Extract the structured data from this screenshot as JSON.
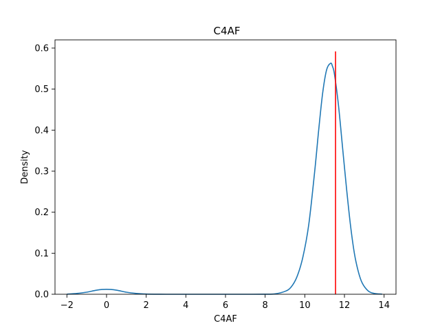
{
  "chart_data": {
    "type": "line",
    "title": "C4AF",
    "xlabel": "C4AF",
    "ylabel": "Density",
    "xlim": [
      -2.6,
      14.6
    ],
    "ylim": [
      0,
      0.62
    ],
    "xticks": [
      -2,
      0,
      2,
      4,
      6,
      8,
      10,
      12,
      14
    ],
    "xtick_labels": [
      "−2",
      "0",
      "2",
      "4",
      "6",
      "8",
      "10",
      "12",
      "14"
    ],
    "yticks": [
      0.0,
      0.1,
      0.2,
      0.3,
      0.4,
      0.5,
      0.6
    ],
    "ytick_labels": [
      "0.0",
      "0.1",
      "0.2",
      "0.3",
      "0.4",
      "0.5",
      "0.6"
    ],
    "grid": false,
    "series": [
      {
        "color": "#1f77b4",
        "x": [
          -2.0,
          -1.5,
          -1.0,
          -0.5,
          0.0,
          0.5,
          1.0,
          1.5,
          2.0,
          2.5,
          3.0,
          4.0,
          5.0,
          6.0,
          7.0,
          8.0,
          8.5,
          9.0,
          9.3,
          9.6,
          9.9,
          10.2,
          10.5,
          10.7,
          10.9,
          11.1,
          11.3,
          11.4,
          11.5,
          11.7,
          11.9,
          12.1,
          12.3,
          12.5,
          12.7,
          12.9,
          13.2,
          13.5,
          13.9
        ],
        "y": [
          0.0001,
          0.002,
          0.005,
          0.01,
          0.012,
          0.01,
          0.005,
          0.002,
          0.0005,
          0.0001,
          0.0,
          0.0,
          0.0,
          0.0,
          0.0,
          0.0001,
          0.001,
          0.007,
          0.017,
          0.042,
          0.09,
          0.17,
          0.3,
          0.4,
          0.49,
          0.547,
          0.563,
          0.555,
          0.535,
          0.46,
          0.36,
          0.26,
          0.17,
          0.1,
          0.055,
          0.027,
          0.008,
          0.002,
          0.0002
        ]
      }
    ],
    "vline": {
      "x": 11.55,
      "y_top": 0.592,
      "color": "#ff0000"
    }
  }
}
